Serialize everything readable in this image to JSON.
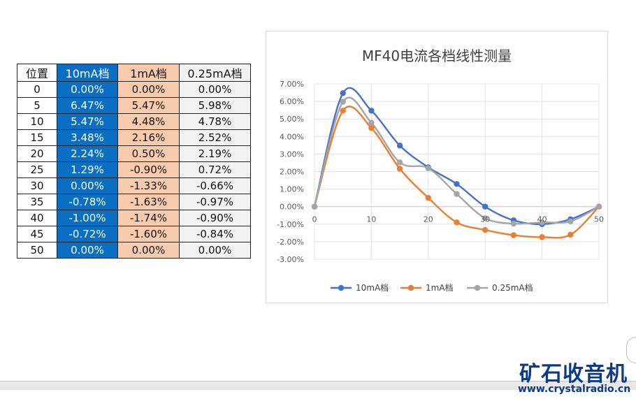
{
  "table": {
    "headers": [
      "位置",
      "10mA档",
      "1mA档",
      "0.25mA档"
    ],
    "rows": [
      [
        "0",
        "0.00%",
        "0.00%",
        "0.00%"
      ],
      [
        "5",
        "6.47%",
        "5.47%",
        "5.98%"
      ],
      [
        "10",
        "5.47%",
        "4.48%",
        "4.78%"
      ],
      [
        "15",
        "3.48%",
        "2.16%",
        "2.52%"
      ],
      [
        "20",
        "2.24%",
        "0.50%",
        "2.19%"
      ],
      [
        "25",
        "1.29%",
        "-0.90%",
        "0.72%"
      ],
      [
        "30",
        "0.00%",
        "-1.33%",
        "-0.66%"
      ],
      [
        "35",
        "-0.78%",
        "-1.63%",
        "-0.97%"
      ],
      [
        "40",
        "-1.00%",
        "-1.74%",
        "-0.90%"
      ],
      [
        "45",
        "-0.72%",
        "-1.60%",
        "-0.84%"
      ],
      [
        "50",
        "0.00%",
        "0.00%",
        "0.00%"
      ]
    ]
  },
  "chart_data": {
    "type": "line",
    "title": "MF40电流各档线性测量",
    "x": [
      0,
      5,
      10,
      15,
      20,
      25,
      30,
      35,
      40,
      45,
      50
    ],
    "xticks": [
      0,
      10,
      20,
      30,
      40,
      50
    ],
    "xlim": [
      0,
      50
    ],
    "ylim": [
      -3.0,
      7.0
    ],
    "yticks": [
      -3,
      -2,
      -1,
      0,
      1,
      2,
      3,
      4,
      5,
      6,
      7
    ],
    "ytick_labels": [
      "-3.00%",
      "-2.00%",
      "-1.00%",
      "0.00%",
      "1.00%",
      "2.00%",
      "3.00%",
      "4.00%",
      "5.00%",
      "6.00%",
      "7.00%"
    ],
    "grid": true,
    "legend": "bottom",
    "smooth": true,
    "series": [
      {
        "name": "10mA档",
        "color": "#4472c4",
        "values": [
          0.0,
          6.47,
          5.47,
          3.48,
          2.24,
          1.29,
          0.0,
          -0.78,
          -1.0,
          -0.72,
          0.0
        ]
      },
      {
        "name": "1mA档",
        "color": "#ed7d31",
        "values": [
          0.0,
          5.47,
          4.48,
          2.16,
          0.5,
          -0.9,
          -1.33,
          -1.63,
          -1.74,
          -1.6,
          0.0
        ]
      },
      {
        "name": "0.25mA档",
        "color": "#a5a5a5",
        "values": [
          0.0,
          5.98,
          4.78,
          2.52,
          2.19,
          0.72,
          -0.66,
          -0.97,
          -0.9,
          -0.84,
          0.0
        ]
      }
    ]
  },
  "watermark": {
    "title": "矿石收音机",
    "url": "www.crystalradio.cn"
  }
}
